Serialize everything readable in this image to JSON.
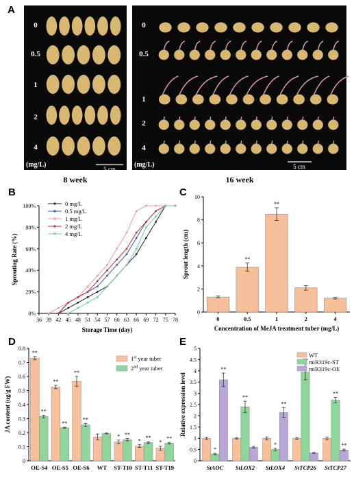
{
  "panel_letters": {
    "a": "A",
    "b": "B",
    "c": "C",
    "d": "D",
    "e": "E"
  },
  "photos": {
    "left": {
      "caption": "8 week",
      "rows": [
        "0",
        "0.5",
        "1",
        "2",
        "4"
      ],
      "unit": "(mg/L)",
      "scale": "5 cm",
      "tubers_per_row": [
        6,
        5,
        5,
        6,
        5
      ]
    },
    "right": {
      "caption": "16 week",
      "rows": [
        "0",
        "0.5",
        "1",
        "2",
        "4"
      ],
      "unit": "(mg/L)",
      "scale": "5 cm",
      "tubers_per_row": [
        10,
        12,
        11,
        12,
        12
      ]
    },
    "colors": {
      "background": "#0a0a0a",
      "tuber": "#d8b870",
      "sprout": "#d89aa0"
    }
  },
  "chart_data": [
    {
      "id": "B",
      "type": "line",
      "xlabel": "Storage Time (day)",
      "ylabel": "Sprouting Rate (%)",
      "x_ticks": [
        "36",
        "39",
        "42",
        "45",
        "48",
        "51",
        "54",
        "57",
        "60",
        "63",
        "66",
        "69",
        "72",
        "75",
        "78"
      ],
      "xlim": [
        36,
        78
      ],
      "y_ticks": [
        "0%",
        "20%",
        "40%",
        "60%",
        "80%",
        "100%"
      ],
      "ylim": [
        0,
        100
      ],
      "legend_position": "top-left",
      "series": [
        {
          "name": "0 mg/L",
          "color": "#202020",
          "x": [
            42,
            45,
            48,
            51,
            54,
            57,
            60,
            63,
            66,
            69,
            72,
            75,
            78
          ],
          "y": [
            0,
            5,
            10,
            15,
            20,
            25,
            35,
            45,
            55,
            70,
            85,
            100,
            100
          ]
        },
        {
          "name": "0.5 mg/L",
          "color": "#3a56b0",
          "x": [
            42,
            45,
            48,
            51,
            54,
            57,
            60,
            63,
            66,
            69,
            72,
            75,
            78
          ],
          "y": [
            0,
            10,
            15,
            20,
            25,
            35,
            45,
            55,
            70,
            85,
            95,
            100,
            100
          ]
        },
        {
          "name": "1 mg/L",
          "color": "#e89a9a",
          "x": [
            39,
            42,
            45,
            48,
            51,
            54,
            57,
            60,
            63,
            66,
            69,
            72,
            75,
            78
          ],
          "y": [
            0,
            5,
            10,
            15,
            25,
            35,
            45,
            60,
            75,
            95,
            100,
            100,
            100,
            100
          ]
        },
        {
          "name": "2 mg/L",
          "color": "#c0303c",
          "x": [
            42,
            45,
            48,
            51,
            54,
            57,
            60,
            63,
            66,
            69,
            72,
            75,
            78
          ],
          "y": [
            0,
            10,
            15,
            20,
            30,
            40,
            50,
            60,
            75,
            85,
            95,
            100,
            100
          ]
        },
        {
          "name": "4 mg/L",
          "color": "#6ac8b0",
          "x": [
            45,
            48,
            51,
            54,
            57,
            60,
            63,
            66,
            69,
            72,
            75,
            78
          ],
          "y": [
            0,
            5,
            10,
            15,
            25,
            35,
            45,
            60,
            80,
            90,
            100,
            100
          ]
        }
      ]
    },
    {
      "id": "C",
      "type": "bar",
      "xlabel": "Concentration of MeJA treatment tuber (mg/L)",
      "ylabel": "Sprout length (cm)",
      "categories": [
        "0",
        "0.5",
        "1",
        "2",
        "4"
      ],
      "values": [
        1.3,
        3.9,
        8.5,
        2.1,
        1.2
      ],
      "errors": [
        0.08,
        0.35,
        0.55,
        0.2,
        0.07
      ],
      "significance": [
        "",
        "**",
        "**",
        "",
        ""
      ],
      "y_ticks": [
        "0",
        "2",
        "4",
        "6",
        "8",
        "10"
      ],
      "ylim": [
        0,
        10
      ],
      "color": "#f8c09a"
    },
    {
      "id": "D",
      "type": "bar",
      "xlabel": "",
      "ylabel": "JA content (ug/g FW)",
      "categories": [
        "OE-S4",
        "OE-S5",
        "OE-S6",
        "WT",
        "ST-T10",
        "ST-T11",
        "ST-T19"
      ],
      "y_ticks": [
        "0",
        "0.1",
        "0.2",
        "0.3",
        "0.4",
        "0.5",
        "0.6",
        "0.7",
        "0.8"
      ],
      "ylim": [
        0,
        0.8
      ],
      "legend_position": "top-right",
      "series": [
        {
          "name": "1st year tuber",
          "name_base": "1",
          "name_sup": "st",
          "name_rest": " year tuber",
          "color": "#f8c09a",
          "values": [
            0.73,
            0.525,
            0.565,
            0.17,
            0.135,
            0.105,
            0.09
          ],
          "errors": [
            0.012,
            0.012,
            0.035,
            0.02,
            0.012,
            0.01,
            0.015
          ],
          "significance": [
            "**",
            "**",
            "**",
            "",
            "*",
            "*",
            "*"
          ]
        },
        {
          "name": "2nd year tuber",
          "name_base": "2",
          "name_sup": "nd",
          "name_rest": " year tuber",
          "color": "#8ed69a",
          "values": [
            0.315,
            0.235,
            0.255,
            0.195,
            0.15,
            0.13,
            0.125
          ],
          "errors": [
            0.01,
            0.004,
            0.012,
            0.004,
            0.008,
            0.006,
            0.006
          ],
          "significance": [
            "**",
            "**",
            "**",
            "",
            "**",
            "**",
            "**"
          ]
        }
      ]
    },
    {
      "id": "E",
      "type": "bar",
      "xlabel": "",
      "ylabel": "Relative expression level",
      "categories": [
        "StAOC",
        "StLOX2",
        "StLOX4",
        "StTCP26",
        "StTCP27"
      ],
      "y_ticks": [
        "0",
        "0.5",
        "1",
        "1.5",
        "2",
        "2.5",
        "3",
        "3.5",
        "4",
        "4.5",
        "5"
      ],
      "ylim": [
        0,
        5
      ],
      "legend_position": "top-right",
      "series": [
        {
          "name": "WT",
          "color": "#f8c09a",
          "values": [
            1.0,
            1.0,
            1.0,
            1.0,
            1.0
          ],
          "errors": [
            0.05,
            0.03,
            0.06,
            0.04,
            0.06
          ],
          "significance": [
            "",
            "",
            "",
            "",
            ""
          ]
        },
        {
          "name": "miR319c-ST",
          "color": "#8ed69a",
          "values": [
            0.3,
            2.4,
            0.5,
            3.95,
            2.7
          ],
          "errors": [
            0.03,
            0.25,
            0.05,
            0.35,
            0.12
          ],
          "significance": [
            "*",
            "**",
            "*",
            "**",
            "**"
          ]
        },
        {
          "name": "miR319c-OE",
          "color": "#b8a6d8",
          "values": [
            3.6,
            0.6,
            2.15,
            0.35,
            0.48
          ],
          "errors": [
            0.3,
            0.04,
            0.22,
            0.02,
            0.04
          ],
          "significance": [
            "**",
            "",
            "**",
            "",
            "**"
          ]
        }
      ]
    }
  ]
}
